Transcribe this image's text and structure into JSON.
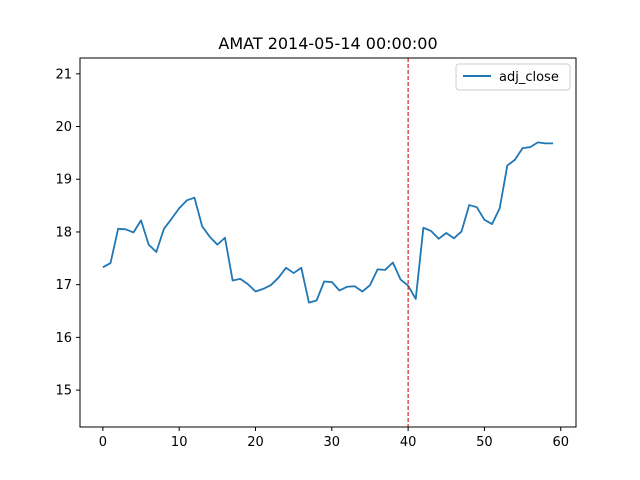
{
  "chart_data": {
    "type": "line",
    "title": "AMAT 2014-05-14 00:00:00",
    "xlabel": "",
    "ylabel": "",
    "xlim": [
      -3,
      62
    ],
    "ylim": [
      14.3,
      21.3
    ],
    "xticks": [
      0,
      10,
      20,
      30,
      40,
      50,
      60
    ],
    "yticks": [
      15,
      16,
      17,
      18,
      19,
      20,
      21
    ],
    "grid": false,
    "legend_position": "top-right",
    "vline": {
      "x": 40,
      "color": "#d62728",
      "style": "dashed"
    },
    "series": [
      {
        "name": "adj_close",
        "color": "#1f77b4",
        "x": [
          0,
          1,
          2,
          3,
          4,
          5,
          6,
          7,
          8,
          9,
          10,
          11,
          12,
          13,
          14,
          15,
          16,
          17,
          18,
          19,
          20,
          21,
          22,
          23,
          24,
          25,
          26,
          27,
          28,
          29,
          30,
          31,
          32,
          33,
          34,
          35,
          36,
          37,
          38,
          39,
          40,
          41,
          42,
          43,
          44,
          45,
          46,
          47,
          48,
          49,
          50,
          51,
          52,
          53,
          54,
          55,
          56,
          57,
          58,
          59
        ],
        "values": [
          17.33,
          17.41,
          18.06,
          18.05,
          17.99,
          18.22,
          17.76,
          17.62,
          18.06,
          18.25,
          18.45,
          18.6,
          18.65,
          18.11,
          17.91,
          17.76,
          17.89,
          17.08,
          17.11,
          17.01,
          16.87,
          16.92,
          16.99,
          17.13,
          17.32,
          17.22,
          17.32,
          16.66,
          16.7,
          17.06,
          17.05,
          16.89,
          16.96,
          16.97,
          16.87,
          16.99,
          17.29,
          17.28,
          17.42,
          17.1,
          16.98,
          16.73,
          18.08,
          18.02,
          17.87,
          17.98,
          17.88,
          18.01,
          18.51,
          18.47,
          18.23,
          18.15,
          18.45,
          19.26,
          19.37,
          19.59,
          19.61,
          19.7,
          19.68,
          19.68
        ]
      }
    ]
  }
}
